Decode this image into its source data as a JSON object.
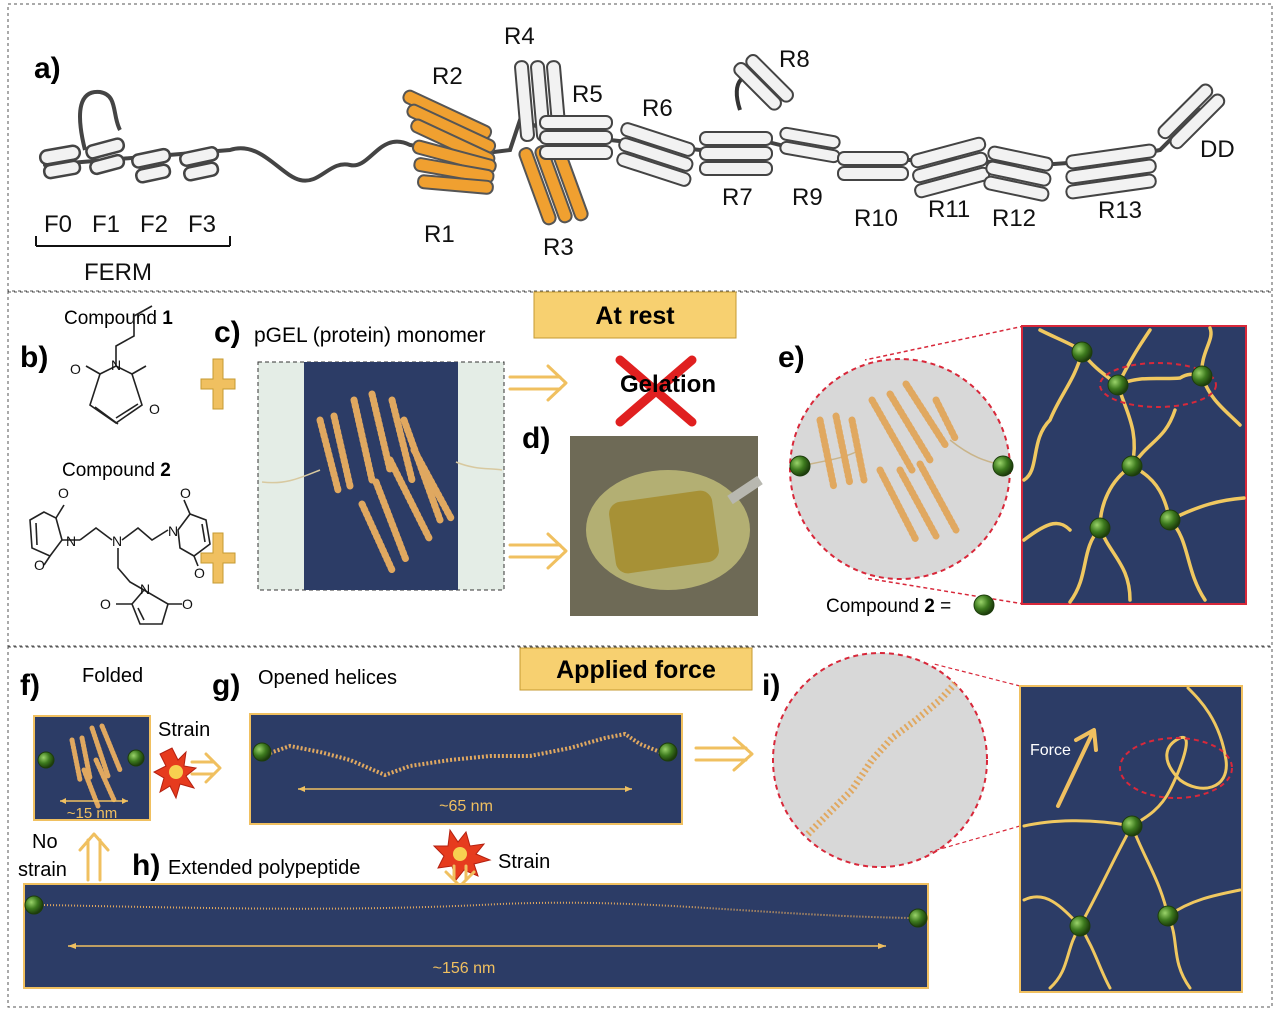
{
  "panels": {
    "a": "a)",
    "b": "b)",
    "c": "c)",
    "d": "d)",
    "e": "e)",
    "f": "f)",
    "g": "g)",
    "h": "h)",
    "i": "i)"
  },
  "panel_a": {
    "ferm_domains": [
      "F0",
      "F1",
      "F2",
      "F3"
    ],
    "ferm_label": "FERM",
    "rod_domains": [
      "R1",
      "R2",
      "R3",
      "R4",
      "R5",
      "R6",
      "R7",
      "R8",
      "R9",
      "R10",
      "R11",
      "R12",
      "R13",
      "DD"
    ],
    "colors": {
      "highlight": "#f0a030",
      "bundle": "#f2f2f2",
      "outline": "#444444"
    }
  },
  "panel_b": {
    "compound1_prefix": "Compound ",
    "compound1_num": "1",
    "compound2_prefix": "Compound ",
    "compound2_num": "2",
    "atoms": {
      "O": "O",
      "N": "N"
    }
  },
  "panel_c": {
    "title": "pGEL (protein) monomer",
    "plus": "+"
  },
  "at_rest": {
    "label": "At rest",
    "gelation": "Gelation"
  },
  "panel_e": {
    "legend_prefix": "Compound ",
    "legend_num": "2",
    "legend_suffix": " ="
  },
  "applied_force": {
    "label": "Applied force",
    "folded": "Folded",
    "opened": "Opened helices",
    "extended": "Extended polypeptide",
    "strain": "Strain",
    "no_strain_line1": "No",
    "no_strain_line2": "strain",
    "len_folded": "~15 nm",
    "len_opened": "~65 nm",
    "len_extended": "~156 nm",
    "force": "Force"
  },
  "colors": {
    "navy": "#2c3c66",
    "gold": "#f0c060",
    "bead": "#3d7a1e",
    "banner": "#f7d070",
    "panel_grey": "#d8d8d8",
    "red": "#d8283a"
  }
}
